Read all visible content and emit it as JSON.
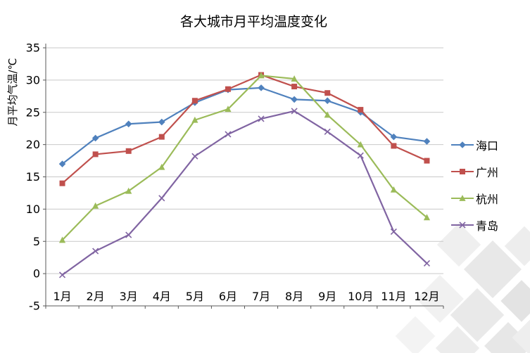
{
  "chart_data": {
    "type": "line",
    "title": "各大城市月平均温度变化",
    "xlabel": "",
    "ylabel": "月平均气温/℃",
    "ylim": [
      -5,
      35
    ],
    "yticks": [
      -5,
      0,
      5,
      10,
      15,
      20,
      25,
      30,
      35
    ],
    "grid": true,
    "legend_position": "right",
    "categories": [
      "1月",
      "2月",
      "3月",
      "4月",
      "5月",
      "6月",
      "7月",
      "8月",
      "9月",
      "10月",
      "11月",
      "12月"
    ],
    "series": [
      {
        "name": "海口",
        "color": "#4F81BD",
        "marker": "diamond",
        "values": [
          17.0,
          21.0,
          23.2,
          23.5,
          26.5,
          28.5,
          28.8,
          27.0,
          26.8,
          25.0,
          21.2,
          20.5
        ]
      },
      {
        "name": "广州",
        "color": "#C0504D",
        "marker": "square",
        "values": [
          14.0,
          18.5,
          19.0,
          21.2,
          26.8,
          28.6,
          30.8,
          29.0,
          28.0,
          25.4,
          19.8,
          17.5
        ]
      },
      {
        "name": "杭州",
        "color": "#9BBB59",
        "marker": "triangle",
        "values": [
          5.2,
          10.5,
          12.8,
          16.5,
          23.8,
          25.5,
          30.7,
          30.2,
          24.6,
          20.0,
          13.0,
          8.7
        ]
      },
      {
        "name": "青岛",
        "color": "#8064A2",
        "marker": "x",
        "values": [
          -0.2,
          3.5,
          6.0,
          11.7,
          18.2,
          21.6,
          24.0,
          25.2,
          22.0,
          18.3,
          6.5,
          1.6
        ]
      }
    ]
  }
}
